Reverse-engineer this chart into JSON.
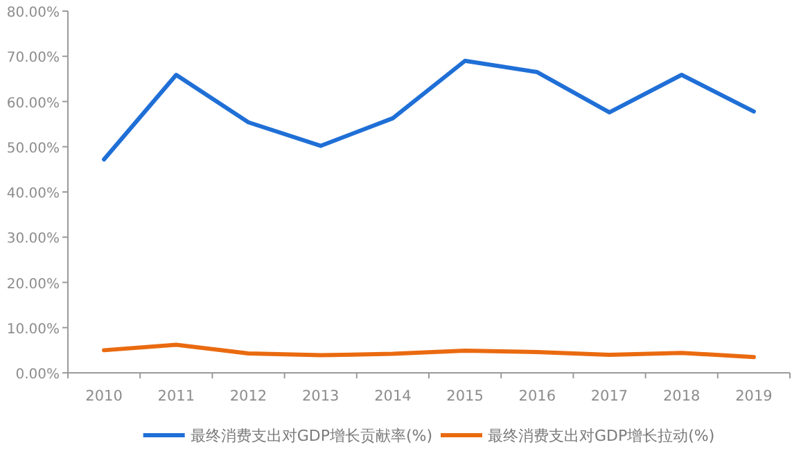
{
  "chart_data": {
    "type": "line",
    "categories": [
      "2010",
      "2011",
      "2012",
      "2013",
      "2014",
      "2015",
      "2016",
      "2017",
      "2018",
      "2019"
    ],
    "series": [
      {
        "name": "最终消费支出对GDP增长贡献率(%)",
        "color": "#1f6fd6",
        "values": [
          47.2,
          65.9,
          55.4,
          50.2,
          56.3,
          69.0,
          66.5,
          57.6,
          65.9,
          57.8
        ]
      },
      {
        "name": "最终消费支出对GDP增长拉动(%)",
        "color": "#ea6a10",
        "values": [
          5.0,
          6.2,
          4.3,
          3.9,
          4.2,
          4.9,
          4.6,
          4.0,
          4.4,
          3.5
        ]
      }
    ],
    "ylim": [
      0,
      80
    ],
    "yticks": [
      {
        "value": 0,
        "label": "0.00%"
      },
      {
        "value": 10,
        "label": "10.00%"
      },
      {
        "value": 20,
        "label": "20.00%"
      },
      {
        "value": 30,
        "label": "30.00%"
      },
      {
        "value": 40,
        "label": "40.00%"
      },
      {
        "value": 50,
        "label": "50.00%"
      },
      {
        "value": 60,
        "label": "60.00%"
      },
      {
        "value": 70,
        "label": "70.00%"
      },
      {
        "value": 80,
        "label": "80.00%"
      }
    ],
    "grid": false,
    "legend": "bottom",
    "marker": "none",
    "line_style": "solid"
  }
}
